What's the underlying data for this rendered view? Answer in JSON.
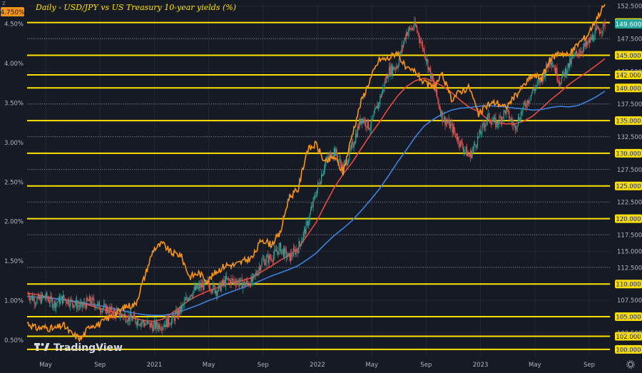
{
  "chart_data": {
    "type": "line",
    "title": "Daily - USD/JPY vs US Treasury 10-year yields (%)",
    "watermark": "TradingView",
    "x_ticks": [
      "May",
      "Sep",
      "2021",
      "May",
      "Sep",
      "2022",
      "May",
      "Sep",
      "2023",
      "May",
      "Sep"
    ],
    "x_range": [
      "2020-03",
      "2023-10"
    ],
    "left_axis": {
      "label": "",
      "ticks": [
        "4.50%",
        "4.00%",
        "3.50%",
        "3.00%",
        "2.50%",
        "2.00%",
        "1.50%",
        "1.00%",
        "0.50%"
      ],
      "ylim": [
        0.3,
        4.75
      ],
      "current_value_label": "4.750%"
    },
    "right_axis": {
      "label": "",
      "ticks": [
        "152.500",
        "150.000",
        "147.500",
        "145.000",
        "142.500",
        "140.000",
        "137.500",
        "135.000",
        "132.500",
        "130.000",
        "127.500",
        "125.000",
        "122.500",
        "120.000",
        "117.500",
        "115.000",
        "112.500",
        "110.000",
        "107.500",
        "105.000",
        "102.500",
        "100.000"
      ],
      "ylim": [
        99,
        152.8
      ],
      "current_value_label": "149.600"
    },
    "horizontal_levels": [
      150,
      145,
      142,
      140,
      135,
      130,
      125,
      120,
      110,
      105,
      102,
      100
    ],
    "series": [
      {
        "axis": "right",
        "style": "candles",
        "color_up": "#26a69a",
        "color_down": "#ef5350",
        "values": [
          108.5,
          107.5,
          108.0,
          107.0,
          107.8,
          107.2,
          106.5,
          107.5,
          106.5,
          106.0,
          105.5,
          105.0,
          104.5,
          104.0,
          103.5,
          103.8,
          104.5,
          106.0,
          108.5,
          109.5,
          110.0,
          109.0,
          110.5,
          110.5,
          110.0,
          110.5,
          113.5,
          114.0,
          115.5,
          114.0,
          115.5,
          119.0,
          124.0,
          128.5,
          130.5,
          127.5,
          131.0,
          135.5,
          134.0,
          138.0,
          142.5,
          143.5,
          148.5,
          149.5,
          145.5,
          140.5,
          135.5,
          134.0,
          131.5,
          129.5,
          132.5,
          135.5,
          134.5,
          136.5,
          134.0,
          137.0,
          139.5,
          141.5,
          144.5,
          141.0,
          143.5,
          145.5,
          146.5,
          148.5,
          149.6
        ]
      },
      {
        "axis": "left",
        "style": "line",
        "color": "#f7931a",
        "values": [
          0.72,
          0.65,
          0.66,
          0.64,
          0.69,
          0.57,
          0.52,
          0.69,
          0.7,
          0.78,
          0.85,
          0.93,
          0.95,
          1.3,
          1.65,
          1.72,
          1.6,
          1.58,
          1.3,
          1.35,
          1.25,
          1.37,
          1.45,
          1.45,
          1.5,
          1.55,
          1.78,
          1.71,
          1.84,
          2.31,
          2.4,
          2.9,
          2.98,
          2.74,
          2.82,
          2.62,
          3.1,
          3.52,
          3.8,
          4.05,
          4.06,
          4.15,
          3.92,
          3.9,
          3.75,
          3.7,
          3.85,
          3.55,
          3.65,
          3.7,
          3.35,
          3.48,
          3.51,
          3.44,
          3.58,
          3.72,
          3.85,
          3.82,
          4.06,
          4.15,
          4.1,
          4.25,
          4.35,
          4.56,
          4.75
        ]
      },
      {
        "axis": "right",
        "style": "line",
        "color": "#e84a3c",
        "name": "",
        "values": [
          108.6,
          108.4,
          108.1,
          107.8,
          107.6,
          107.3,
          107.0,
          106.7,
          106.3,
          105.9,
          105.5,
          105.1,
          104.7,
          104.4,
          104.3,
          104.6,
          105.5,
          106.5,
          107.6,
          108.3,
          108.9,
          109.4,
          110.0,
          110.3,
          110.6,
          111.0,
          111.9,
          112.7,
          113.6,
          114.4,
          115.4,
          117.4,
          119.4,
          122.1,
          124.7,
          126.8,
          128.6,
          130.7,
          132.8,
          134.7,
          136.8,
          138.7,
          140.2,
          141.1,
          141.5,
          141.0,
          140.3,
          139.3,
          138.1,
          137.0,
          136.4,
          135.2,
          134.7,
          134.5,
          134.5,
          134.9,
          135.7,
          136.9,
          138.2,
          139.3,
          140.5,
          141.5,
          142.4,
          143.4,
          144.5
        ]
      },
      {
        "axis": "right",
        "style": "line",
        "color": "#3b82e0",
        "name": "",
        "values": [
          108.1,
          108.0,
          107.9,
          107.8,
          107.6,
          107.4,
          107.2,
          106.9,
          106.7,
          106.4,
          106.1,
          105.8,
          105.5,
          105.3,
          105.2,
          105.2,
          105.4,
          105.8,
          106.3,
          106.8,
          107.4,
          107.9,
          108.5,
          109.0,
          109.5,
          110.0,
          110.6,
          111.2,
          111.7,
          112.2,
          112.8,
          113.7,
          114.7,
          116.1,
          117.4,
          118.5,
          119.7,
          121.2,
          122.8,
          124.5,
          126.5,
          128.6,
          130.5,
          132.5,
          134.2,
          135.2,
          136.0,
          136.6,
          136.9,
          137.0,
          137.2,
          137.3,
          137.2,
          137.1,
          136.9,
          136.8,
          136.6,
          136.7,
          137.0,
          137.2,
          137.1,
          137.3,
          137.9,
          138.6,
          139.5
        ]
      }
    ]
  },
  "colors": {
    "background": "#161a25",
    "grid": "#242833",
    "levels": "#ffe000",
    "dashed_levels": "#8f9199",
    "axis_text": "#b2b5be",
    "title": "#ffe000",
    "price_badge": "#26a69a",
    "yield_badge": "#f7931a"
  },
  "ui": {
    "scale_mode_label": "Z",
    "settings_icon": "gear-icon"
  }
}
